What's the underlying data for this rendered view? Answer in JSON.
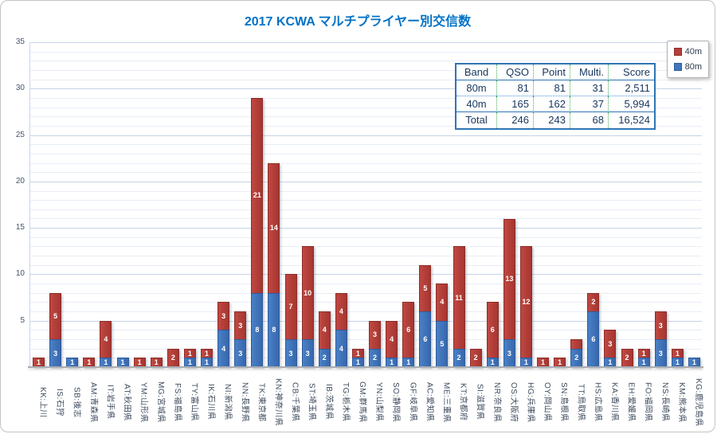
{
  "chart_data": {
    "type": "bar",
    "stacked": true,
    "title": "2017 KCWA マルチプライヤー別交信数",
    "categories": [
      "KK:上川",
      "IS:石狩",
      "SB:後志",
      "AM:青森県",
      "IT:岩手県",
      "AT:秋田県",
      "YM:山形県",
      "MG:宮城県",
      "FS:福島県",
      "TY:富山県",
      "IK:石川県",
      "NI:新潟県",
      "NN:長野県",
      "TK:東京都",
      "KN:神奈川県",
      "CB:千葉県",
      "ST:埼玉県",
      "IB:茨城県",
      "TG:栃木県",
      "GM:群馬県",
      "YN:山梨県",
      "SO:静岡県",
      "GF:岐阜県",
      "AC:愛知県",
      "ME:三重県",
      "KT:京都府",
      "SI:滋賀県",
      "NR:奈良県",
      "OS:大阪府",
      "HG:兵庫県",
      "OY:岡山県",
      "SN:島根県",
      "TT:鳥取県",
      "HS:広島県",
      "KA:香川県",
      "EH:愛媛県",
      "FO:福岡県",
      "NS:長崎県",
      "KM:熊本県",
      "KG:鹿児島県"
    ],
    "series": [
      {
        "name": "80m",
        "color": "#3f76bc",
        "values": [
          0,
          3,
          1,
          0,
          1,
          1,
          0,
          0,
          0,
          1,
          1,
          4,
          3,
          8,
          8,
          3,
          3,
          2,
          4,
          1,
          2,
          1,
          1,
          6,
          5,
          2,
          0,
          1,
          3,
          1,
          0,
          0,
          2,
          6,
          1,
          0,
          1,
          3,
          1,
          1
        ]
      },
      {
        "name": "40m",
        "color": "#b4403a",
        "values": [
          1,
          5,
          0,
          1,
          4,
          0,
          1,
          1,
          2,
          1,
          1,
          3,
          3,
          21,
          14,
          7,
          10,
          4,
          4,
          1,
          3,
          4,
          6,
          5,
          4,
          11,
          2,
          6,
          13,
          12,
          1,
          1,
          1,
          2,
          3,
          2,
          1,
          3,
          1,
          0
        ]
      }
    ],
    "hidden_labels": [
      {
        "series": "40m",
        "category": "TT:鳥取県"
      }
    ],
    "ylim": [
      0,
      35
    ],
    "y_ticks": [
      5,
      10,
      15,
      20,
      25,
      30,
      35
    ],
    "grid": "minor-every-1-major-every-5",
    "legend_position": "top-right"
  },
  "legend": {
    "items": [
      {
        "label": "40m",
        "color": "#b4403a"
      },
      {
        "label": "80m",
        "color": "#3f76bc"
      }
    ]
  },
  "table": {
    "headers": [
      "Band",
      "QSO",
      "Point",
      "Multi.",
      "Score"
    ],
    "rows": [
      {
        "band": "80m",
        "qso": "81",
        "point": "81",
        "multi": "31",
        "score": "2,511"
      },
      {
        "band": "40m",
        "qso": "165",
        "point": "162",
        "multi": "37",
        "score": "5,994"
      },
      {
        "band": "Total",
        "qso": "246",
        "point": "243",
        "multi": "68",
        "score": "16,524"
      }
    ]
  },
  "colors": {
    "title": "#0072c6",
    "bar_40m": "#b4403a",
    "bar_80m": "#3f76bc",
    "table_border": "#2e75b6",
    "table_inner_dotted": "#3fae5a",
    "grid_major": "#c6d3e8",
    "grid_minor": "#e7edf6"
  }
}
